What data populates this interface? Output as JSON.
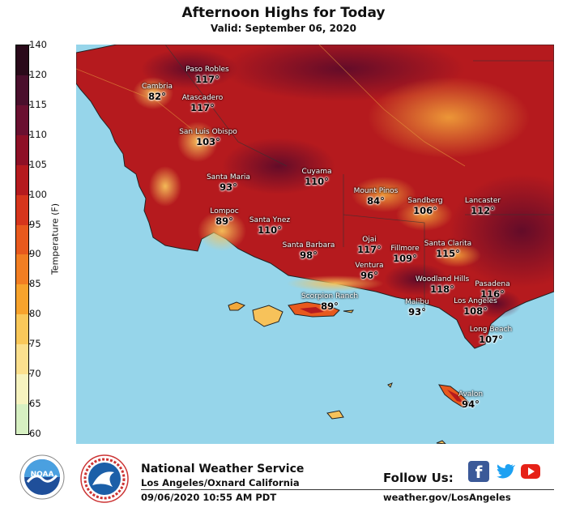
{
  "header": {
    "title": "Afternoon Highs for Today",
    "subtitle": "Valid: September 06, 2020"
  },
  "colorbar": {
    "label": "Temperature (F)",
    "ticks": [
      "140",
      "120",
      "115",
      "110",
      "105",
      "100",
      "95",
      "90",
      "85",
      "80",
      "75",
      "70",
      "65",
      "60"
    ],
    "colors": [
      "#2a0a1a",
      "#4a0f2c",
      "#6a1030",
      "#8e1026",
      "#b51a1e",
      "#d6351c",
      "#e8591d",
      "#f27e22",
      "#f7a32c",
      "#f9c85a",
      "#fbe08e",
      "#f6f3bf",
      "#d7f0c2",
      "#a8dd9a"
    ]
  },
  "map": {
    "cities": [
      {
        "name": "Cambria",
        "temp": "82°"
      },
      {
        "name": "Paso Robles",
        "temp": "117°"
      },
      {
        "name": "Atascadero",
        "temp": "117°"
      },
      {
        "name": "San Luis Obispo",
        "temp": "103°"
      },
      {
        "name": "Santa Maria",
        "temp": "93°"
      },
      {
        "name": "Lompoc",
        "temp": "89°"
      },
      {
        "name": "Santa Ynez",
        "temp": "110°"
      },
      {
        "name": "Cuyama",
        "temp": "110°"
      },
      {
        "name": "Mount Pinos",
        "temp": "84°"
      },
      {
        "name": "Sandberg",
        "temp": "106°"
      },
      {
        "name": "Lancaster",
        "temp": "112°"
      },
      {
        "name": "Santa Barbara",
        "temp": "98°"
      },
      {
        "name": "Ojai",
        "temp": "117°"
      },
      {
        "name": "Ventura",
        "temp": "96°"
      },
      {
        "name": "Fillmore",
        "temp": "109°"
      },
      {
        "name": "Santa Clarita",
        "temp": "115°"
      },
      {
        "name": "Woodland Hills",
        "temp": "118°"
      },
      {
        "name": "Pasadena",
        "temp": "116°"
      },
      {
        "name": "Malibu",
        "temp": "93°"
      },
      {
        "name": "Los Angeles",
        "temp": "108°"
      },
      {
        "name": "Long Beach",
        "temp": "107°"
      },
      {
        "name": "Scorpion Ranch",
        "temp": "89°"
      },
      {
        "name": "Avalon",
        "temp": "94°"
      }
    ]
  },
  "footer": {
    "org": "National Weather Service",
    "office": "Los Angeles/Oxnard California",
    "timestamp": "09/06/2020 10:55 AM PDT",
    "follow": "Follow Us:",
    "url": "weather.gov/LosAngeles",
    "noaa_logo_text": "NOAA",
    "social": [
      "facebook-icon",
      "twitter-icon",
      "youtube-icon"
    ]
  }
}
